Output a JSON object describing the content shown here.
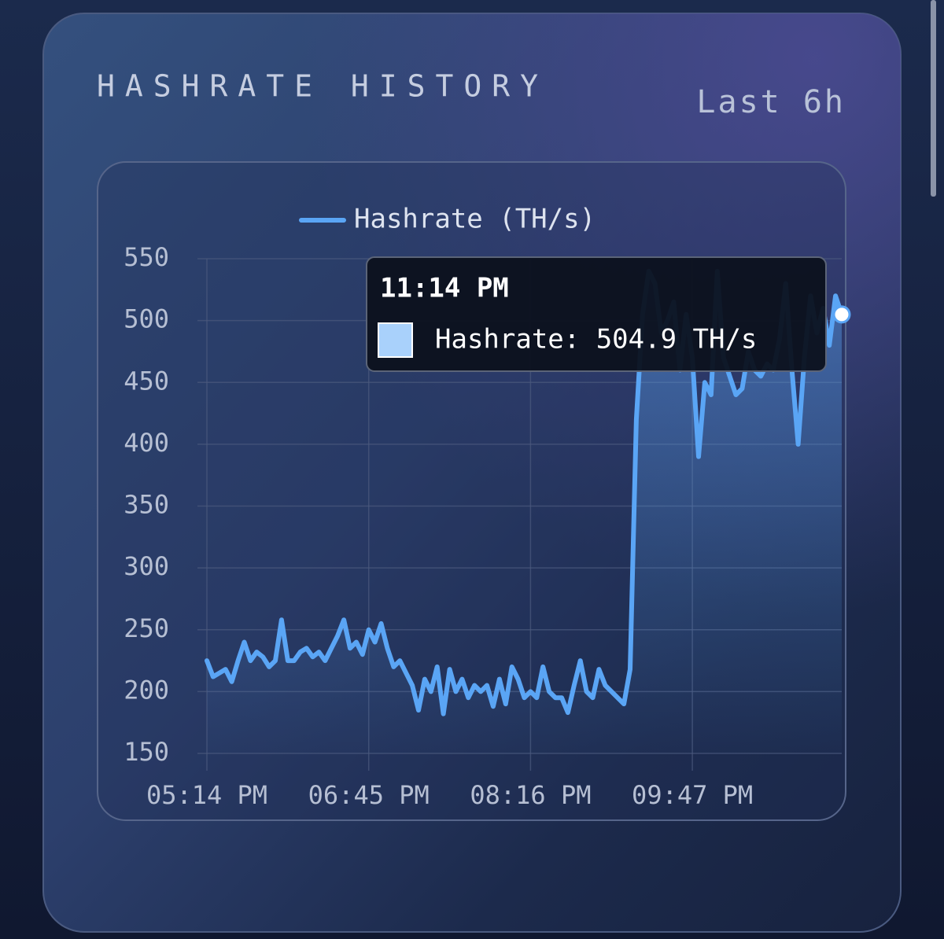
{
  "chart_data": {
    "type": "line",
    "title": "HASHRATE HISTORY",
    "subtitle": "Last 6h",
    "categories": [
      "05:14 PM",
      null,
      null,
      null,
      null,
      null,
      null,
      null,
      null,
      null,
      null,
      null,
      null,
      null,
      null,
      null,
      null,
      null,
      null,
      null,
      null,
      null,
      null,
      null,
      null,
      null,
      "06:45 PM",
      null,
      null,
      null,
      null,
      null,
      null,
      null,
      null,
      null,
      null,
      null,
      null,
      null,
      null,
      null,
      null,
      null,
      null,
      null,
      null,
      null,
      null,
      null,
      null,
      null,
      "08:16 PM",
      null,
      null,
      null,
      null,
      null,
      null,
      null,
      null,
      null,
      null,
      null,
      null,
      null,
      null,
      null,
      null,
      null,
      null,
      null,
      null,
      null,
      null,
      null,
      null,
      null,
      "09:47 PM",
      null,
      null,
      null,
      null,
      null,
      null,
      null,
      null,
      null,
      null,
      null,
      null,
      null,
      null,
      null,
      null,
      null,
      null,
      null,
      null,
      null,
      null,
      null,
      null
    ],
    "series": [
      {
        "name": "Hashrate (TH/s)",
        "color": "#5aa5f5",
        "values": [
          225,
          212,
          215,
          218,
          208,
          225,
          240,
          225,
          232,
          228,
          220,
          225,
          258,
          225,
          225,
          232,
          235,
          228,
          232,
          225,
          235,
          245,
          258,
          235,
          240,
          230,
          250,
          240,
          255,
          235,
          220,
          225,
          215,
          205,
          185,
          210,
          200,
          220,
          182,
          218,
          200,
          210,
          195,
          205,
          200,
          205,
          188,
          210,
          190,
          220,
          210,
          195,
          200,
          195,
          220,
          200,
          195,
          195,
          183,
          205,
          225,
          200,
          195,
          218,
          205,
          200,
          195,
          190,
          218,
          420,
          505,
          540,
          530,
          490,
          500,
          515,
          460,
          505,
          470,
          390,
          450,
          440,
          540,
          470,
          455,
          440,
          445,
          475,
          460,
          455,
          465,
          460,
          485,
          530,
          460,
          400,
          470,
          520,
          490,
          510,
          480,
          520,
          504.9
        ]
      }
    ],
    "ylim": [
      150,
      550
    ],
    "yticks": [
      150,
      200,
      250,
      300,
      350,
      400,
      450,
      500,
      550
    ],
    "grid": true,
    "tooltip": {
      "title": "11:14 PM",
      "label": "Hashrate: 504.9 TH/s",
      "color": "#a9d1fb"
    }
  }
}
